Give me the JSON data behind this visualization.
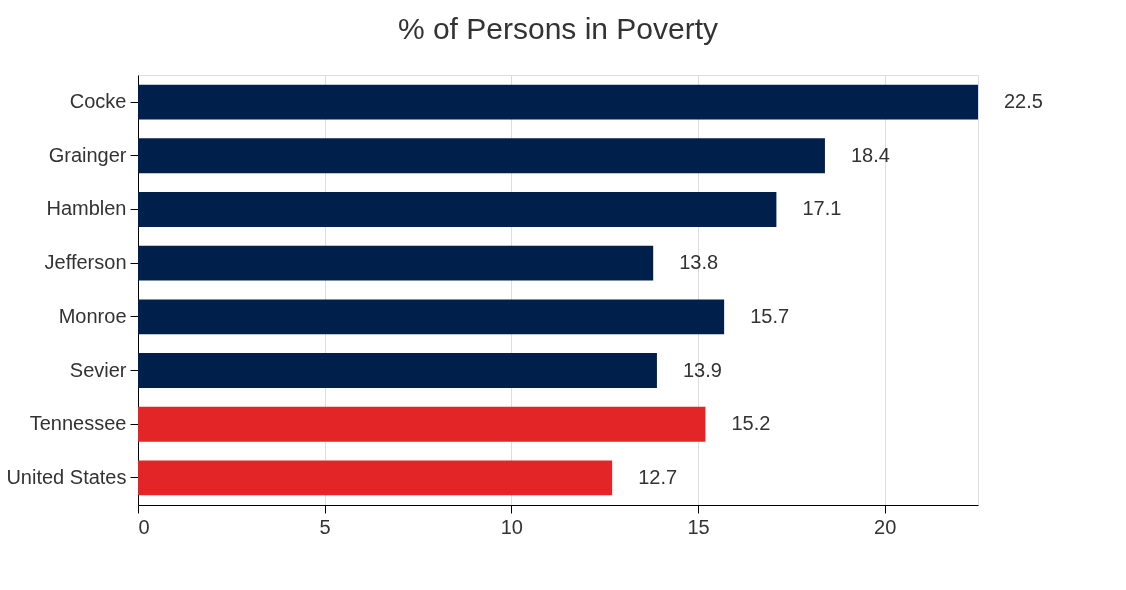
{
  "chart_data": {
    "type": "bar",
    "title": "% of Persons in Poverty",
    "orientation": "horizontal",
    "categories": [
      "Cocke",
      "Grainger",
      "Hamblen",
      "Jefferson",
      "Monroe",
      "Sevier",
      "Tennessee",
      "United States"
    ],
    "values": [
      22.5,
      18.4,
      17.1,
      13.8,
      15.7,
      13.9,
      15.2,
      12.7
    ],
    "colors": [
      "#001f4b",
      "#001f4b",
      "#001f4b",
      "#001f4b",
      "#001f4b",
      "#001f4b",
      "#e32527",
      "#e32527"
    ],
    "xlim": [
      0,
      22.5
    ],
    "xticks": [
      0,
      5,
      10,
      15,
      20
    ],
    "grid": "x",
    "data_labels": true
  }
}
